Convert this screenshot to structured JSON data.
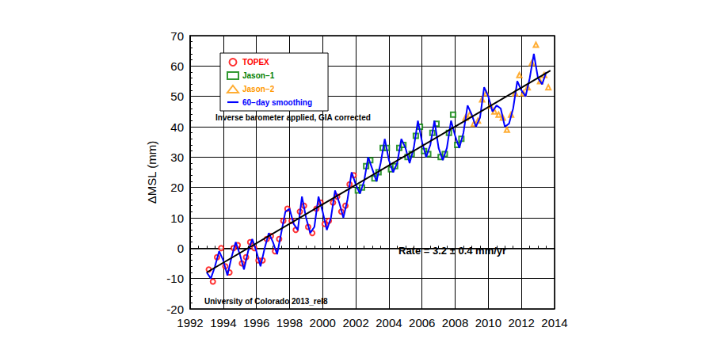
{
  "chart_data": {
    "type": "scatter",
    "y_label": "ΔMSL (mm)",
    "xlim": [
      1992,
      2014
    ],
    "xticks": [
      1992,
      1994,
      1996,
      1998,
      2000,
      2002,
      2004,
      2006,
      2008,
      2010,
      2012,
      2014
    ],
    "ylim": [
      -20,
      70
    ],
    "yticks": [
      -20,
      -10,
      0,
      10,
      20,
      30,
      40,
      50,
      60,
      70
    ],
    "grid": true,
    "legend": "upper left",
    "annotations": [
      "Inverse barometer applied, GIA corrected",
      "Rate = 3.2 ± 0.4 mm/yr",
      "University of Colorado 2013_rel8"
    ],
    "series": [
      {
        "name": "TOPEX",
        "type": "scatter",
        "marker": "circle_open",
        "color": "#ff0000",
        "x": [
          1993.125,
          1993.375,
          1993.625,
          1993.875,
          1994.125,
          1994.375,
          1994.625,
          1994.875,
          1995.125,
          1995.375,
          1995.625,
          1995.875,
          1996.125,
          1996.375,
          1996.625,
          1996.875,
          1997.125,
          1997.375,
          1997.625,
          1997.875,
          1998.125,
          1998.375,
          1998.625,
          1998.875,
          1999.125,
          1999.375,
          1999.625,
          1999.875,
          2000.125,
          2000.375,
          2000.625,
          2000.875,
          2001.125,
          2001.375,
          2001.625,
          2001.875
        ],
        "values": [
          -7,
          -11,
          -3,
          0,
          -6,
          -8,
          0,
          1,
          -5,
          -3,
          2,
          0,
          -4,
          -4,
          3,
          4,
          -1,
          3,
          9,
          13,
          9,
          6,
          12,
          14,
          7,
          5,
          13,
          15,
          8,
          9,
          15,
          17,
          12,
          14,
          21,
          24
        ]
      },
      {
        "name": "Jason−1",
        "type": "scatter",
        "marker": "square_open",
        "color": "#008000",
        "x": [
          2002.125,
          2002.375,
          2002.625,
          2002.875,
          2003.125,
          2003.375,
          2003.625,
          2003.875,
          2004.125,
          2004.375,
          2004.625,
          2004.875,
          2005.125,
          2005.375,
          2005.625,
          2005.875,
          2006.125,
          2006.375,
          2006.625,
          2006.875,
          2007.125,
          2007.375,
          2007.625,
          2007.875,
          2008.125,
          2008.375
        ],
        "values": [
          19,
          20,
          27,
          29,
          23,
          25,
          33,
          33,
          26,
          27,
          33,
          34,
          30,
          31,
          37,
          40,
          32,
          31,
          38,
          41,
          30,
          31,
          38,
          44,
          34,
          36
        ]
      },
      {
        "name": "Jason−2",
        "type": "scatter",
        "marker": "triangle_open",
        "color": "#ff9900",
        "x": [
          2008.625,
          2008.875,
          2009.125,
          2009.375,
          2009.625,
          2009.875,
          2010.125,
          2010.375,
          2010.625,
          2010.875,
          2011.125,
          2011.375,
          2011.625,
          2011.875,
          2012.125,
          2012.375,
          2012.625,
          2012.875,
          2013.125,
          2013.375,
          2013.625
        ],
        "values": [
          43,
          44,
          41,
          42,
          49,
          51,
          47,
          45,
          44,
          43,
          39,
          44,
          51,
          57,
          51,
          53,
          61,
          67,
          55,
          57,
          53
        ]
      },
      {
        "name": "60−day smoothing",
        "type": "line",
        "line_style": "solid",
        "color": "#0000ff",
        "x": [
          1993,
          1993.25,
          1993.5,
          1993.75,
          1994,
          1994.25,
          1994.5,
          1994.75,
          1995,
          1995.25,
          1995.5,
          1995.75,
          1996,
          1996.25,
          1996.5,
          1996.75,
          1997,
          1997.25,
          1997.5,
          1997.75,
          1998,
          1998.25,
          1998.5,
          1998.75,
          1999,
          1999.25,
          1999.5,
          1999.75,
          2000,
          2000.25,
          2000.5,
          2000.75,
          2001,
          2001.25,
          2001.5,
          2001.75,
          2002,
          2002.25,
          2002.5,
          2002.75,
          2003,
          2003.25,
          2003.5,
          2003.75,
          2004,
          2004.25,
          2004.5,
          2004.75,
          2005,
          2005.25,
          2005.5,
          2005.75,
          2006,
          2006.25,
          2006.5,
          2006.75,
          2007,
          2007.25,
          2007.5,
          2007.75,
          2008,
          2008.25,
          2008.5,
          2008.75,
          2009,
          2009.25,
          2009.5,
          2009.75,
          2010,
          2010.25,
          2010.5,
          2010.75,
          2011,
          2011.25,
          2011.5,
          2011.75,
          2012,
          2012.25,
          2012.5,
          2012.75,
          2013,
          2013.25,
          2013.5
        ],
        "values": [
          -8,
          -10,
          -6,
          -1,
          -4,
          -9,
          -3,
          2,
          -2,
          -7,
          -1,
          3,
          -1,
          -6,
          0,
          5,
          2,
          -2,
          5,
          12,
          13,
          8,
          6,
          17,
          10,
          5,
          7,
          17,
          12,
          6,
          10,
          19,
          15,
          10,
          16,
          25,
          21,
          18,
          22,
          30,
          26,
          22,
          28,
          36,
          29,
          25,
          28,
          36,
          33,
          28,
          33,
          42,
          35,
          30,
          34,
          42,
          33,
          29,
          33,
          42,
          37,
          33,
          38,
          47,
          44,
          40,
          43,
          53,
          50,
          45,
          47,
          46,
          40,
          41,
          46,
          55,
          52,
          50,
          56,
          64,
          56,
          54,
          58
        ]
      }
    ],
    "trend_line": {
      "x": [
        1993,
        2013.75
      ],
      "values": [
        -8,
        58.5
      ],
      "color": "#000000",
      "line_style": "solid"
    }
  }
}
